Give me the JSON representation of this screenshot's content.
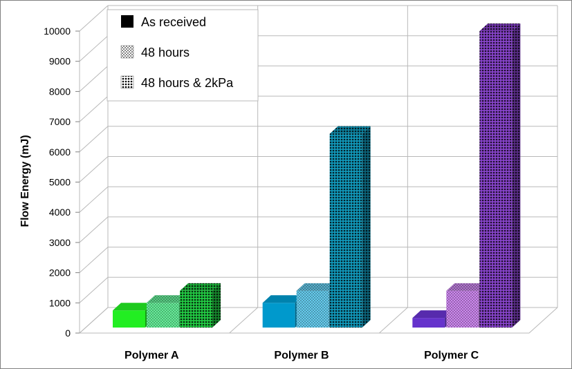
{
  "chart_data": {
    "type": "bar",
    "title": "",
    "ylabel": "Flow Energy (mJ)",
    "xlabel": "",
    "ylim": [
      0,
      10000
    ],
    "yticks": [
      "0",
      "1000",
      "2000",
      "3000",
      "4000",
      "5000",
      "6000",
      "7000",
      "8000",
      "9000",
      "10000"
    ],
    "categories": [
      "Polymer A",
      "Polymer B",
      "Polymer C"
    ],
    "series": [
      {
        "name": "As received",
        "values": [
          750,
          1000,
          500
        ]
      },
      {
        "name": "48 hours",
        "values": [
          1000,
          1400,
          1400
        ]
      },
      {
        "name": "48 hours & 2kPa",
        "values": [
          1400,
          6600,
          10000
        ]
      }
    ],
    "bar_colors": [
      [
        "#22ee22",
        "#0099cc",
        "#6633cc"
      ],
      [
        "#66ee99",
        "#66ccee",
        "#cc88ee"
      ],
      [
        "#22cc44",
        "#1199bb",
        "#8844cc"
      ]
    ],
    "legend": "top-left",
    "grid": true
  }
}
